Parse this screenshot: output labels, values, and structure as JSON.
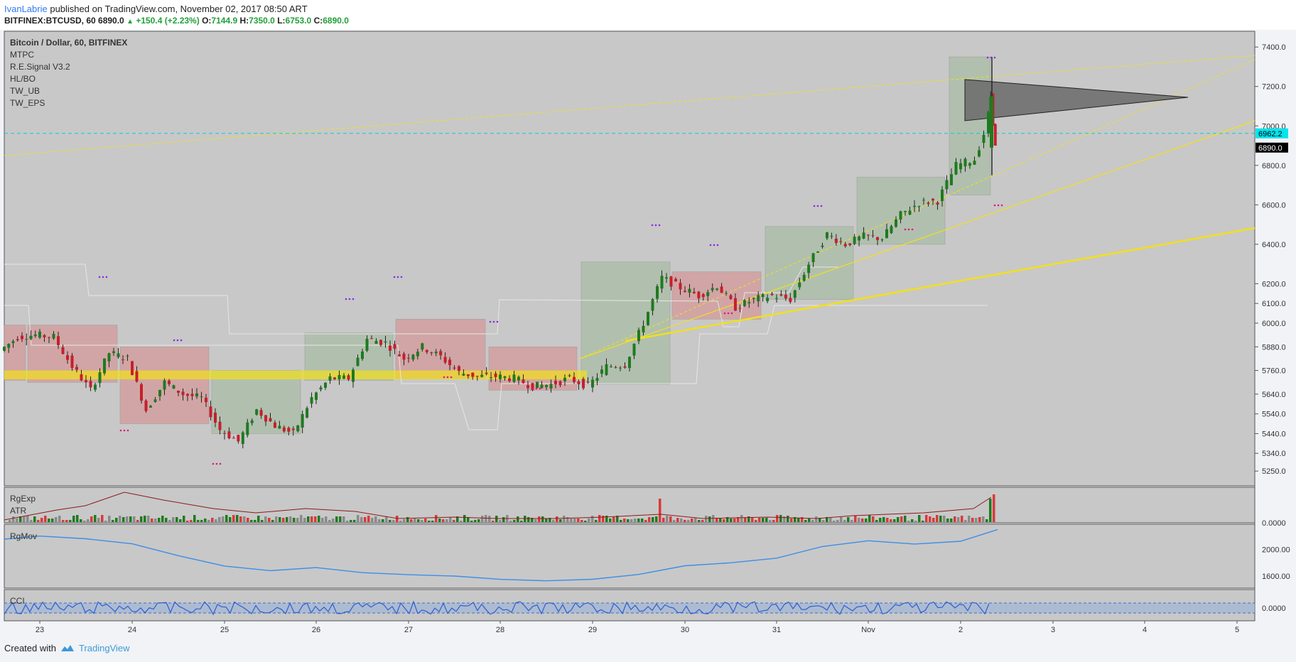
{
  "header": {
    "author": "IvanLabrie",
    "published_text": "published on TradingView.com, November 02, 2017 08:50 ART",
    "symbol": "BITFINEX:BTCUSD, 60",
    "last": "6890.0",
    "change": "+150.4 (+2.23%)",
    "ohlc": [
      {
        "label": "O:",
        "value": "7144.9"
      },
      {
        "label": "H:",
        "value": "7350.0"
      },
      {
        "label": "L:",
        "value": "6753.0"
      },
      {
        "label": "C:",
        "value": "6890.0"
      }
    ]
  },
  "legend": {
    "title": "Bitcoin / Dollar, 60, BITFINEX",
    "indicators": [
      "MTPC",
      "R.E.Signal V3.2",
      "HL/BO",
      "TW_UB",
      "TW_EPS"
    ]
  },
  "panes": {
    "volume": [
      "RgExp",
      "ATR"
    ],
    "rgmov": "RgMov",
    "cci": "CCI"
  },
  "footer": {
    "created": "Created with",
    "brand": "TradingView"
  },
  "colors": {
    "up": "#1f7a1f",
    "down": "#c81e2b",
    "accent": "#f2e01a",
    "price_tag": "#00e5ef",
    "pane_bg": "#c8c8c8"
  },
  "chart_data": [
    {
      "type": "line",
      "title": "Bitcoin / Dollar, 60, BITFINEX",
      "x_ticks": [
        "23",
        "24",
        "25",
        "26",
        "27",
        "28",
        "29",
        "30",
        "31",
        "Nov",
        "2",
        "3",
        "4",
        "5"
      ],
      "y_ticks": [
        5250.0,
        5340.0,
        5440.0,
        5540.0,
        5640.0,
        5760.0,
        5880.0,
        6000.0,
        6100.0,
        6200.0,
        6400.0,
        6600.0,
        6800.0,
        7000.0,
        7200.0,
        7400.0
      ],
      "y_tick_labels": [
        "5250.0",
        "5340.0",
        "5440.0",
        "5540.0",
        "5640.0",
        "5760.0",
        "5880.0",
        "6000.0",
        "6100.0",
        "6200.0",
        "6400.0",
        "6600.0",
        "6800.0",
        "7000.0",
        "7200.0",
        "7400.0"
      ],
      "ylim": [
        5175,
        7480
      ],
      "xlim": [
        22.6,
        36.2
      ],
      "series": [
        {
          "values": [
            [
              22.6,
              5860
            ],
            [
              22.8,
              5930
            ],
            [
              23.0,
              5940
            ],
            [
              23.2,
              5930
            ],
            [
              23.4,
              5780
            ],
            [
              23.6,
              5660
            ],
            [
              23.8,
              5850
            ],
            [
              24.0,
              5820
            ],
            [
              24.2,
              5560
            ],
            [
              24.4,
              5700
            ],
            [
              24.6,
              5640
            ],
            [
              24.8,
              5620
            ],
            [
              25.0,
              5460
            ],
            [
              25.2,
              5400
            ],
            [
              25.4,
              5560
            ],
            [
              25.6,
              5480
            ],
            [
              25.8,
              5440
            ],
            [
              26.0,
              5620
            ],
            [
              26.2,
              5720
            ],
            [
              26.4,
              5720
            ],
            [
              26.6,
              5920
            ],
            [
              26.8,
              5900
            ],
            [
              27.0,
              5820
            ],
            [
              27.2,
              5880
            ],
            [
              27.4,
              5830
            ],
            [
              27.6,
              5750
            ],
            [
              27.8,
              5730
            ],
            [
              28.0,
              5730
            ],
            [
              28.2,
              5720
            ],
            [
              28.4,
              5680
            ],
            [
              28.6,
              5690
            ],
            [
              28.8,
              5720
            ],
            [
              29.0,
              5680
            ],
            [
              29.2,
              5780
            ],
            [
              29.4,
              5790
            ],
            [
              29.6,
              6000
            ],
            [
              29.8,
              6230
            ],
            [
              30.0,
              6180
            ],
            [
              30.2,
              6140
            ],
            [
              30.4,
              6190
            ],
            [
              30.6,
              6080
            ],
            [
              30.8,
              6120
            ],
            [
              31.0,
              6140
            ],
            [
              31.2,
              6120
            ],
            [
              31.4,
              6300
            ],
            [
              31.6,
              6450
            ],
            [
              31.8,
              6400
            ],
            [
              32.0,
              6440
            ],
            [
              32.2,
              6430
            ],
            [
              32.4,
              6550
            ],
            [
              32.6,
              6610
            ],
            [
              32.8,
              6620
            ],
            [
              33.0,
              6800
            ],
            [
              33.2,
              6830
            ],
            [
              33.3,
              6960
            ],
            [
              33.35,
              7150
            ],
            [
              33.4,
              6890
            ]
          ]
        }
      ],
      "marked_levels": [
        {
          "value": 6962.2,
          "label": "6962.2"
        },
        {
          "value": 6890.0,
          "label": "6890.0"
        }
      ]
    },
    {
      "type": "bar",
      "title": "",
      "series": [
        {
          "name": "RgExp"
        },
        {
          "name": "ATR"
        }
      ],
      "y_ticks": [
        0.0
      ],
      "y_tick_labels": [
        "0.0000"
      ]
    },
    {
      "type": "line",
      "title": "",
      "series": [
        {
          "name": "RgMov",
          "values": [
            [
              22.6,
              2150
            ],
            [
              23.0,
              2190
            ],
            [
              23.5,
              2150
            ],
            [
              24.0,
              2100
            ],
            [
              24.5,
              1920
            ],
            [
              25.0,
              1740
            ],
            [
              25.5,
              1700
            ],
            [
              26.0,
              1730
            ],
            [
              26.5,
              1640
            ],
            [
              27.0,
              1610
            ],
            [
              27.5,
              1620
            ],
            [
              28.0,
              1560
            ],
            [
              28.5,
              1520
            ],
            [
              29.0,
              1560
            ],
            [
              29.5,
              1620
            ],
            [
              30.0,
              1760
            ],
            [
              30.5,
              1790
            ],
            [
              31.0,
              1880
            ],
            [
              31.5,
              2060
            ],
            [
              32.0,
              2120
            ],
            [
              32.5,
              2080
            ],
            [
              33.0,
              2130
            ],
            [
              33.4,
              2290
            ]
          ]
        }
      ],
      "y_ticks": [
        1600.0,
        2000.0
      ],
      "y_tick_labels": [
        "1600.00",
        "2000.00"
      ],
      "ylim": [
        1420,
        2380
      ]
    },
    {
      "type": "line",
      "title": "",
      "series": [
        {
          "name": "CCI"
        }
      ],
      "y_ticks": [
        0.0
      ],
      "y_tick_labels": [
        "0.0000"
      ]
    }
  ]
}
